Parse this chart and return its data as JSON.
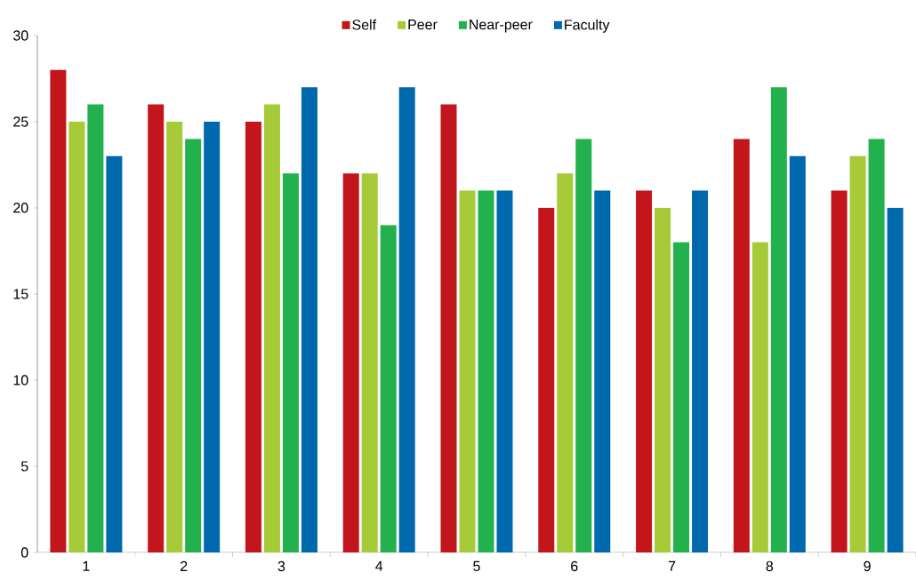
{
  "chart_data": {
    "type": "bar",
    "categories": [
      "1",
      "2",
      "3",
      "4",
      "5",
      "6",
      "7",
      "8",
      "9"
    ],
    "series": [
      {
        "name": "Self",
        "color": "#c3161c",
        "values": [
          28,
          26,
          25,
          22,
          26,
          20,
          21,
          24,
          21
        ]
      },
      {
        "name": "Peer",
        "color": "#a6ca38",
        "values": [
          25,
          25,
          26,
          22,
          21,
          22,
          20,
          18,
          23
        ]
      },
      {
        "name": "Near-peer",
        "color": "#22b14c",
        "values": [
          26,
          24,
          22,
          19,
          21,
          24,
          18,
          27,
          24
        ]
      },
      {
        "name": "Faculty",
        "color": "#0068ad",
        "values": [
          23,
          25,
          27,
          27,
          21,
          21,
          21,
          23,
          20
        ]
      }
    ],
    "ylim": [
      0,
      30
    ],
    "yticks": [
      0,
      5,
      10,
      15,
      20,
      25,
      30
    ],
    "grid": false,
    "legend": "top"
  }
}
